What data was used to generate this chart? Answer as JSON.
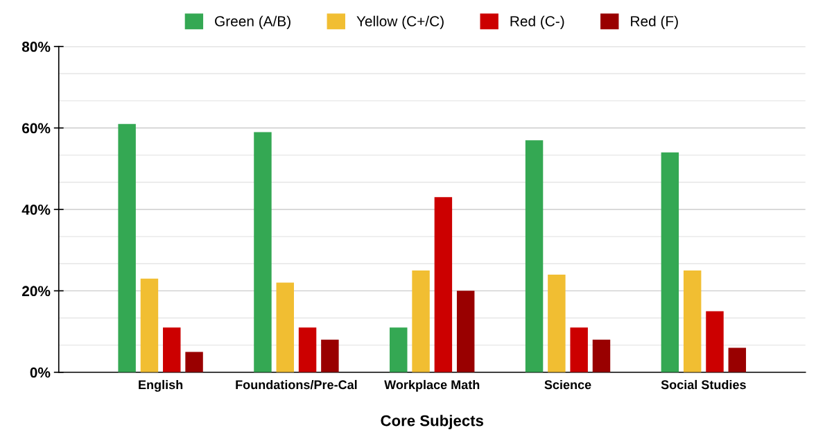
{
  "chart_data": {
    "type": "bar",
    "xlabel": "Core Subjects",
    "categories": [
      "English",
      "Foundations/Pre-Cal",
      "Workplace Math",
      "Science",
      "Social Studies"
    ],
    "series": [
      {
        "name": "Green (A/B)",
        "color": "#34a853",
        "values": [
          61,
          59,
          11,
          57,
          54
        ]
      },
      {
        "name": "Yellow (C+/C)",
        "color": "#f1be32",
        "values": [
          23,
          22,
          25,
          24,
          25
        ]
      },
      {
        "name": "Red (C-)",
        "color": "#cc0000",
        "values": [
          11,
          11,
          43,
          11,
          15
        ]
      },
      {
        "name": "Red (F)",
        "color": "#990000",
        "values": [
          5,
          8,
          20,
          8,
          6
        ]
      }
    ],
    "ylim": [
      0,
      80
    ],
    "yticks": [
      {
        "value": 0,
        "label": "0%"
      },
      {
        "value": 20,
        "label": "20%"
      },
      {
        "value": 40,
        "label": "40%"
      },
      {
        "value": 60,
        "label": "60%"
      },
      {
        "value": 80,
        "label": "80%"
      }
    ],
    "grid": "y",
    "legend": "top"
  }
}
